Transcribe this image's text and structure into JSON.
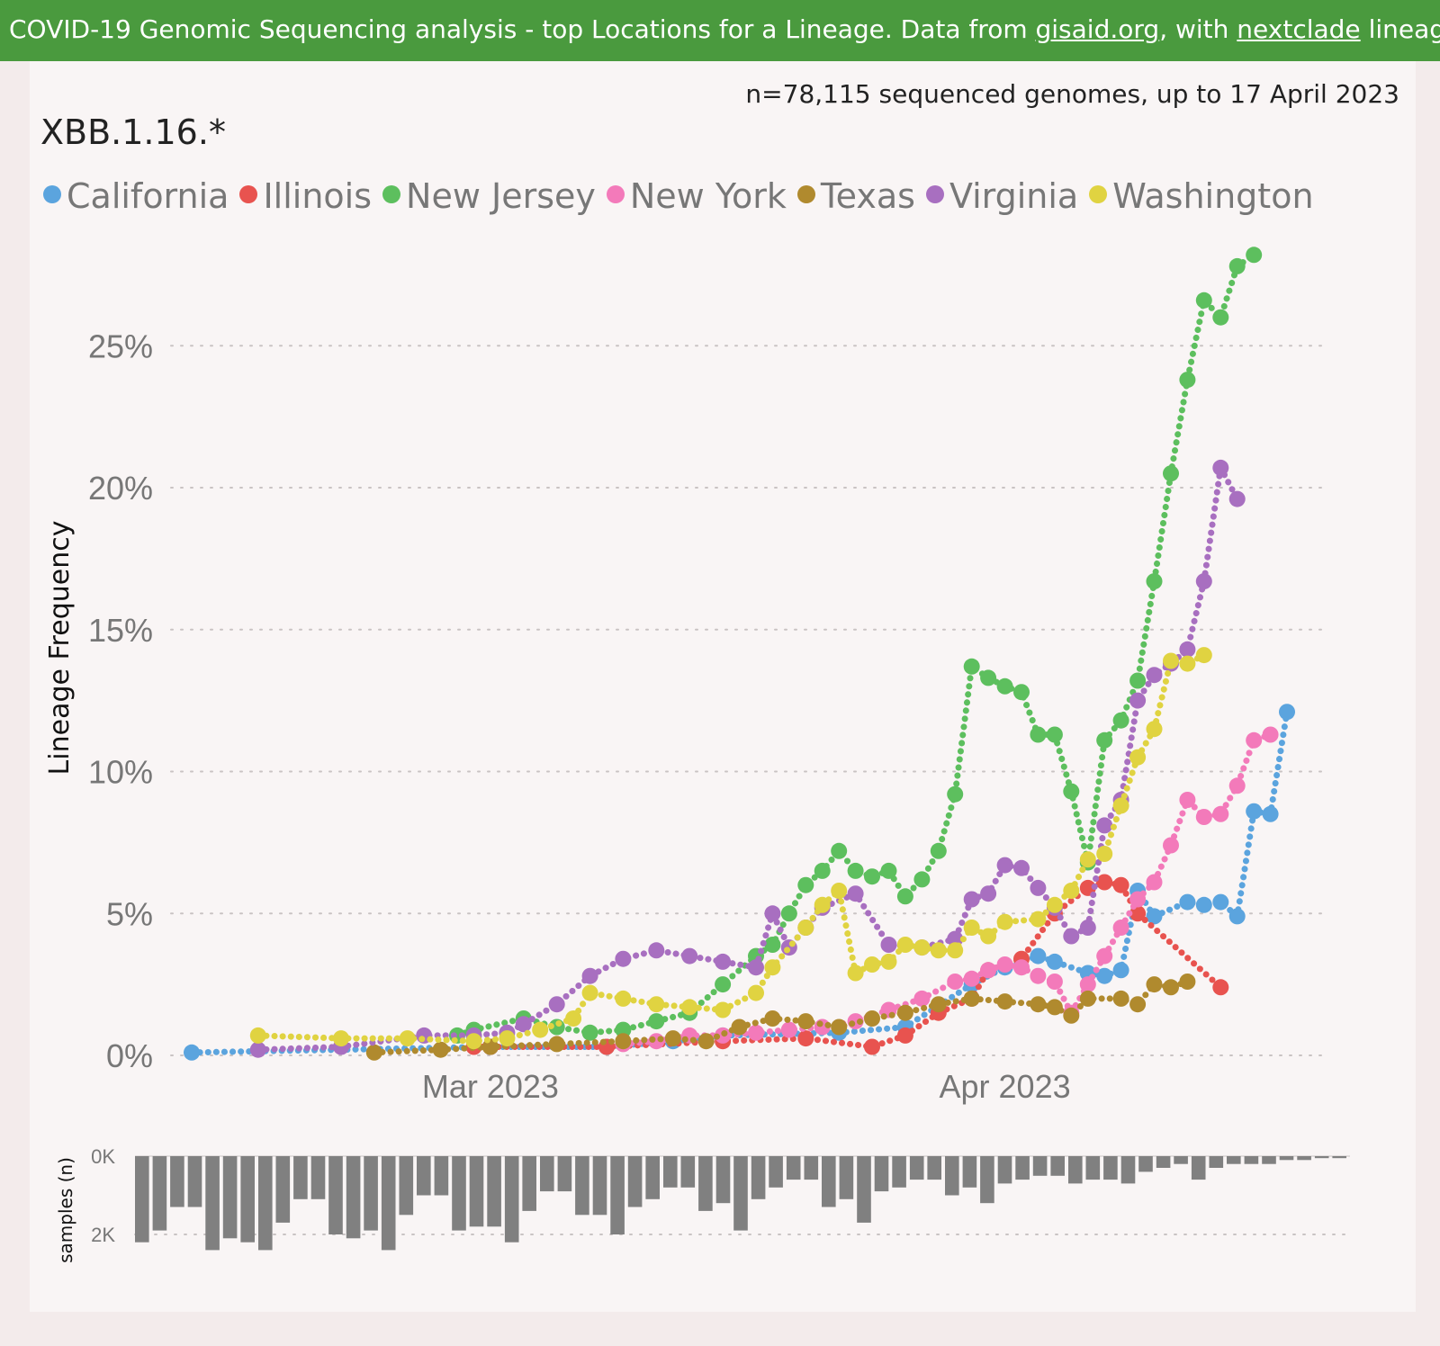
{
  "header": {
    "prefix": "COVID-19 Genomic Sequencing analysis - top Locations for a Lineage. Data from ",
    "link1": "gisaid.org",
    "middle": ", with ",
    "link2": "nextclade",
    "suffix": " lineages Source fil"
  },
  "sample_count_text": "n=78,115 sequenced genomes, up to 17 April 2023",
  "lineage_title": "XBB.1.16.*",
  "chart_data": [
    {
      "type": "line",
      "title": "XBB.1.16.*",
      "ylabel": "Lineage Frequency",
      "ylim": [
        0,
        28.5
      ],
      "y_ticks": [
        "0%",
        "5%",
        "10%",
        "15%",
        "20%",
        "25%"
      ],
      "y_tick_values": [
        0,
        5,
        10,
        15,
        20,
        25
      ],
      "x_ticks": [
        "Mar 2023",
        "Apr 2023"
      ],
      "x_tick_dates": [
        "2023-03-01",
        "2023-04-01"
      ],
      "x_range": [
        "2023-02-11",
        "2023-04-17"
      ],
      "grid": "horizontal dotted",
      "legend_position": "top-left",
      "series": [
        {
          "name": "California",
          "color": "#5ba4de",
          "points": [
            [
              "2023-02-11",
              0.1
            ],
            [
              "2023-03-01",
              0.3
            ],
            [
              "2023-03-08",
              0.3
            ],
            [
              "2023-03-12",
              0.5
            ],
            [
              "2023-03-15",
              0.7
            ],
            [
              "2023-03-22",
              0.8
            ],
            [
              "2023-03-26",
              1.0
            ],
            [
              "2023-03-30",
              2.5
            ],
            [
              "2023-04-01",
              3.1
            ],
            [
              "2023-04-03",
              3.5
            ],
            [
              "2023-04-04",
              3.3
            ],
            [
              "2023-04-06",
              2.9
            ],
            [
              "2023-04-07",
              2.8
            ],
            [
              "2023-04-08",
              3.0
            ],
            [
              "2023-04-09",
              5.8
            ],
            [
              "2023-04-10",
              4.9
            ],
            [
              "2023-04-12",
              5.4
            ],
            [
              "2023-04-13",
              5.3
            ],
            [
              "2023-04-14",
              5.4
            ],
            [
              "2023-04-15",
              4.9
            ],
            [
              "2023-04-16",
              8.6
            ],
            [
              "2023-04-17",
              8.5
            ],
            [
              "2023-04-18",
              12.1
            ]
          ]
        },
        {
          "name": "Illinois",
          "color": "#e8534f",
          "points": [
            [
              "2023-02-28",
              0.3
            ],
            [
              "2023-03-01",
              0.3
            ],
            [
              "2023-03-08",
              0.3
            ],
            [
              "2023-03-15",
              0.5
            ],
            [
              "2023-03-20",
              0.6
            ],
            [
              "2023-03-24",
              0.3
            ],
            [
              "2023-03-26",
              0.7
            ],
            [
              "2023-03-28",
              1.5
            ],
            [
              "2023-03-30",
              2.0
            ],
            [
              "2023-03-31",
              3.0
            ],
            [
              "2023-04-02",
              3.4
            ],
            [
              "2023-04-04",
              5.0
            ],
            [
              "2023-04-06",
              5.9
            ],
            [
              "2023-04-07",
              6.1
            ],
            [
              "2023-04-08",
              6.0
            ],
            [
              "2023-04-09",
              5.0
            ],
            [
              "2023-04-14",
              2.4
            ]
          ]
        },
        {
          "name": "New Jersey",
          "color": "#5dbf5e",
          "points": [
            [
              "2023-02-27",
              0.7
            ],
            [
              "2023-02-28",
              0.9
            ],
            [
              "2023-03-03",
              1.3
            ],
            [
              "2023-03-05",
              1.0
            ],
            [
              "2023-03-07",
              0.8
            ],
            [
              "2023-03-09",
              0.9
            ],
            [
              "2023-03-11",
              1.2
            ],
            [
              "2023-03-13",
              1.5
            ],
            [
              "2023-03-15",
              2.5
            ],
            [
              "2023-03-17",
              3.5
            ],
            [
              "2023-03-18",
              3.9
            ],
            [
              "2023-03-19",
              5.0
            ],
            [
              "2023-03-20",
              6.0
            ],
            [
              "2023-03-21",
              6.5
            ],
            [
              "2023-03-22",
              7.2
            ],
            [
              "2023-03-23",
              6.5
            ],
            [
              "2023-03-24",
              6.3
            ],
            [
              "2023-03-25",
              6.5
            ],
            [
              "2023-03-26",
              5.6
            ],
            [
              "2023-03-27",
              6.2
            ],
            [
              "2023-03-28",
              7.2
            ],
            [
              "2023-03-29",
              9.2
            ],
            [
              "2023-03-30",
              13.7
            ],
            [
              "2023-03-31",
              13.3
            ],
            [
              "2023-04-01",
              13.0
            ],
            [
              "2023-04-02",
              12.8
            ],
            [
              "2023-04-03",
              11.3
            ],
            [
              "2023-04-04",
              11.3
            ],
            [
              "2023-04-05",
              9.3
            ],
            [
              "2023-04-06",
              6.8
            ],
            [
              "2023-04-07",
              11.1
            ],
            [
              "2023-04-08",
              11.8
            ],
            [
              "2023-04-09",
              13.2
            ],
            [
              "2023-04-10",
              16.7
            ],
            [
              "2023-04-11",
              20.5
            ],
            [
              "2023-04-12",
              23.8
            ],
            [
              "2023-04-13",
              26.6
            ],
            [
              "2023-04-14",
              26.0
            ],
            [
              "2023-04-15",
              27.8
            ],
            [
              "2023-04-16",
              28.2
            ]
          ]
        },
        {
          "name": "New York",
          "color": "#f37aba",
          "points": [
            [
              "2023-03-09",
              0.4
            ],
            [
              "2023-03-11",
              0.5
            ],
            [
              "2023-03-13",
              0.7
            ],
            [
              "2023-03-15",
              0.7
            ],
            [
              "2023-03-17",
              0.8
            ],
            [
              "2023-03-19",
              0.9
            ],
            [
              "2023-03-21",
              1.0
            ],
            [
              "2023-03-23",
              1.2
            ],
            [
              "2023-03-25",
              1.6
            ],
            [
              "2023-03-27",
              2.0
            ],
            [
              "2023-03-29",
              2.6
            ],
            [
              "2023-03-30",
              2.7
            ],
            [
              "2023-03-31",
              3.0
            ],
            [
              "2023-04-01",
              3.2
            ],
            [
              "2023-04-02",
              3.1
            ],
            [
              "2023-04-03",
              2.8
            ],
            [
              "2023-04-04",
              2.6
            ],
            [
              "2023-04-05",
              1.5
            ],
            [
              "2023-04-06",
              2.5
            ],
            [
              "2023-04-07",
              3.5
            ],
            [
              "2023-04-08",
              4.5
            ],
            [
              "2023-04-09",
              5.5
            ],
            [
              "2023-04-10",
              6.1
            ],
            [
              "2023-04-11",
              7.4
            ],
            [
              "2023-04-12",
              9.0
            ],
            [
              "2023-04-13",
              8.4
            ],
            [
              "2023-04-14",
              8.5
            ],
            [
              "2023-04-15",
              9.5
            ],
            [
              "2023-04-16",
              11.1
            ],
            [
              "2023-04-17",
              11.3
            ]
          ]
        },
        {
          "name": "Texas",
          "color": "#b08a2e",
          "points": [
            [
              "2023-02-22",
              0.1
            ],
            [
              "2023-02-26",
              0.2
            ],
            [
              "2023-03-01",
              0.3
            ],
            [
              "2023-03-05",
              0.4
            ],
            [
              "2023-03-09",
              0.5
            ],
            [
              "2023-03-12",
              0.6
            ],
            [
              "2023-03-14",
              0.5
            ],
            [
              "2023-03-16",
              1.0
            ],
            [
              "2023-03-18",
              1.3
            ],
            [
              "2023-03-20",
              1.2
            ],
            [
              "2023-03-22",
              1.0
            ],
            [
              "2023-03-24",
              1.3
            ],
            [
              "2023-03-26",
              1.5
            ],
            [
              "2023-03-28",
              1.8
            ],
            [
              "2023-03-30",
              2.0
            ],
            [
              "2023-04-01",
              1.9
            ],
            [
              "2023-04-03",
              1.8
            ],
            [
              "2023-04-04",
              1.7
            ],
            [
              "2023-04-05",
              1.4
            ],
            [
              "2023-04-06",
              2.0
            ],
            [
              "2023-04-08",
              2.0
            ],
            [
              "2023-04-09",
              1.8
            ],
            [
              "2023-04-10",
              2.5
            ],
            [
              "2023-04-11",
              2.4
            ],
            [
              "2023-04-12",
              2.6
            ]
          ]
        },
        {
          "name": "Virginia",
          "color": "#a86fc0",
          "points": [
            [
              "2023-02-15",
              0.2
            ],
            [
              "2023-02-20",
              0.3
            ],
            [
              "2023-02-25",
              0.7
            ],
            [
              "2023-02-28",
              0.7
            ],
            [
              "2023-03-02",
              0.8
            ],
            [
              "2023-03-03",
              1.1
            ],
            [
              "2023-03-05",
              1.8
            ],
            [
              "2023-03-07",
              2.8
            ],
            [
              "2023-03-09",
              3.4
            ],
            [
              "2023-03-11",
              3.7
            ],
            [
              "2023-03-13",
              3.5
            ],
            [
              "2023-03-15",
              3.3
            ],
            [
              "2023-03-17",
              3.1
            ],
            [
              "2023-03-18",
              5.0
            ],
            [
              "2023-03-19",
              3.8
            ],
            [
              "2023-03-20",
              4.5
            ],
            [
              "2023-03-21",
              5.2
            ],
            [
              "2023-03-23",
              5.7
            ],
            [
              "2023-03-25",
              3.9
            ],
            [
              "2023-03-27",
              3.8
            ],
            [
              "2023-03-29",
              4.1
            ],
            [
              "2023-03-30",
              5.5
            ],
            [
              "2023-03-31",
              5.7
            ],
            [
              "2023-04-01",
              6.7
            ],
            [
              "2023-04-02",
              6.6
            ],
            [
              "2023-04-03",
              5.9
            ],
            [
              "2023-04-04",
              5.2
            ],
            [
              "2023-04-05",
              4.2
            ],
            [
              "2023-04-06",
              4.5
            ],
            [
              "2023-04-07",
              8.1
            ],
            [
              "2023-04-08",
              9.0
            ],
            [
              "2023-04-09",
              12.5
            ],
            [
              "2023-04-10",
              13.4
            ],
            [
              "2023-04-11",
              13.8
            ],
            [
              "2023-04-12",
              14.3
            ],
            [
              "2023-04-13",
              16.7
            ],
            [
              "2023-04-14",
              20.7
            ],
            [
              "2023-04-15",
              19.6
            ]
          ]
        },
        {
          "name": "Washington",
          "color": "#e0d341",
          "points": [
            [
              "2023-02-15",
              0.7
            ],
            [
              "2023-02-20",
              0.6
            ],
            [
              "2023-02-24",
              0.6
            ],
            [
              "2023-02-28",
              0.5
            ],
            [
              "2023-03-02",
              0.6
            ],
            [
              "2023-03-04",
              0.9
            ],
            [
              "2023-03-06",
              1.3
            ],
            [
              "2023-03-07",
              2.2
            ],
            [
              "2023-03-09",
              2.0
            ],
            [
              "2023-03-11",
              1.8
            ],
            [
              "2023-03-13",
              1.7
            ],
            [
              "2023-03-15",
              1.6
            ],
            [
              "2023-03-17",
              2.2
            ],
            [
              "2023-03-18",
              3.1
            ],
            [
              "2023-03-20",
              4.5
            ],
            [
              "2023-03-21",
              5.3
            ],
            [
              "2023-03-22",
              5.8
            ],
            [
              "2023-03-23",
              2.9
            ],
            [
              "2023-03-24",
              3.2
            ],
            [
              "2023-03-25",
              3.3
            ],
            [
              "2023-03-26",
              3.9
            ],
            [
              "2023-03-27",
              3.8
            ],
            [
              "2023-03-28",
              3.7
            ],
            [
              "2023-03-29",
              3.7
            ],
            [
              "2023-03-30",
              4.5
            ],
            [
              "2023-03-31",
              4.2
            ],
            [
              "2023-04-01",
              4.7
            ],
            [
              "2023-04-03",
              4.8
            ],
            [
              "2023-04-04",
              5.3
            ],
            [
              "2023-04-05",
              5.8
            ],
            [
              "2023-04-06",
              6.9
            ],
            [
              "2023-04-07",
              7.1
            ],
            [
              "2023-04-08",
              8.8
            ],
            [
              "2023-04-09",
              10.5
            ],
            [
              "2023-04-10",
              11.5
            ],
            [
              "2023-04-11",
              13.9
            ],
            [
              "2023-04-12",
              13.8
            ],
            [
              "2023-04-13",
              14.1
            ]
          ]
        }
      ]
    },
    {
      "type": "bar",
      "ylabel": "samples (n)",
      "y_ticks": [
        "0K",
        "2K"
      ],
      "y_tick_values": [
        0,
        2000
      ],
      "inverted": true,
      "color": "#808080",
      "values": [
        2200,
        1900,
        1300,
        1300,
        2400,
        2100,
        2200,
        2400,
        1700,
        1100,
        1100,
        2000,
        2100,
        1900,
        2400,
        1500,
        1000,
        1000,
        1900,
        1800,
        1800,
        2200,
        1400,
        900,
        900,
        1500,
        1500,
        2000,
        1300,
        1100,
        800,
        800,
        1400,
        1200,
        1900,
        1100,
        800,
        600,
        600,
        1300,
        1100,
        1700,
        900,
        800,
        600,
        600,
        1000,
        800,
        1200,
        700,
        600,
        500,
        500,
        700,
        600,
        600,
        700,
        400,
        300,
        200,
        600,
        300,
        200,
        200,
        200,
        100,
        100,
        50,
        50
      ]
    }
  ]
}
